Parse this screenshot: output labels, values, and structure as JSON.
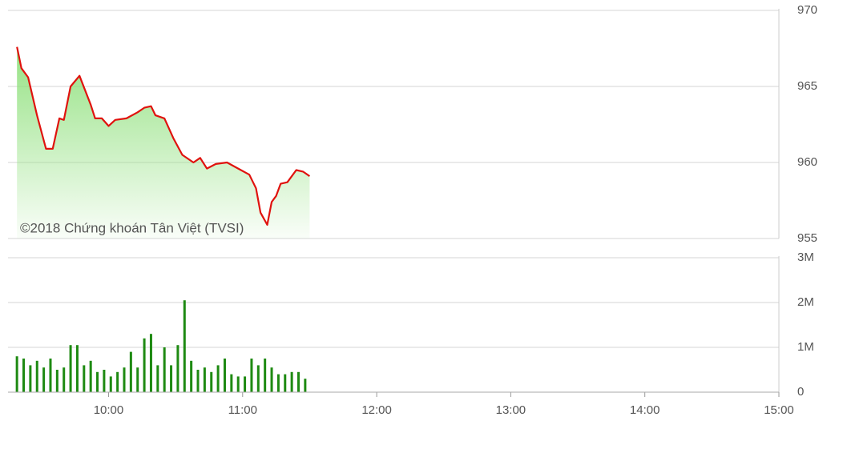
{
  "chart_data": [
    {
      "type": "line",
      "annotation": "©2018 Chứng khoán Tân Việt (TVSI)",
      "color": "#e0120e",
      "area_color": "#8fe07c",
      "x": [
        "9:19",
        "9:21",
        "9:24",
        "9:28",
        "9:32",
        "9:35",
        "9:38",
        "9:40",
        "9:43",
        "9:47",
        "9:52",
        "9:54",
        "9:57",
        "10:00",
        "10:03",
        "10:08",
        "10:13",
        "10:16",
        "10:19",
        "10:21",
        "10:25",
        "10:29",
        "10:33",
        "10:38",
        "10:41",
        "10:44",
        "10:48",
        "10:53",
        "10:58",
        "11:03",
        "11:06",
        "11:08",
        "11:11",
        "11:13",
        "11:15",
        "11:17",
        "11:20",
        "11:24",
        "11:27",
        "11:30"
      ],
      "values": [
        967.6,
        966.2,
        965.6,
        963.1,
        960.9,
        960.9,
        962.9,
        962.8,
        965.0,
        965.7,
        963.8,
        962.9,
        962.9,
        962.4,
        962.8,
        962.9,
        963.3,
        963.6,
        963.7,
        963.1,
        962.9,
        961.6,
        960.5,
        960.0,
        960.3,
        959.6,
        959.9,
        960.0,
        959.6,
        959.2,
        958.3,
        956.7,
        955.9,
        957.4,
        957.8,
        958.6,
        958.7,
        959.5,
        959.4,
        959.1
      ],
      "xlim": [
        "9:15",
        "15:00"
      ],
      "ylim": [
        955,
        970
      ],
      "yticks": [
        955,
        960,
        965,
        970
      ],
      "grid": true
    },
    {
      "type": "bar",
      "color": "#1e8a12",
      "x": [
        "9:19",
        "9:22",
        "9:25",
        "9:28",
        "9:31",
        "9:34",
        "9:37",
        "9:40",
        "9:43",
        "9:46",
        "9:49",
        "9:52",
        "9:55",
        "9:58",
        "10:01",
        "10:04",
        "10:07",
        "10:10",
        "10:13",
        "10:16",
        "10:19",
        "10:22",
        "10:25",
        "10:28",
        "10:31",
        "10:34",
        "10:37",
        "10:40",
        "10:43",
        "10:46",
        "10:49",
        "10:52",
        "10:55",
        "10:58",
        "11:01",
        "11:04",
        "11:07",
        "11:10",
        "11:13",
        "11:16",
        "11:19",
        "11:22",
        "11:25",
        "11:28"
      ],
      "values": [
        800000,
        750000,
        600000,
        700000,
        550000,
        750000,
        500000,
        550000,
        1050000,
        1050000,
        600000,
        700000,
        450000,
        500000,
        350000,
        450000,
        550000,
        900000,
        550000,
        1200000,
        1300000,
        600000,
        1000000,
        600000,
        1050000,
        2050000,
        700000,
        500000,
        550000,
        450000,
        600000,
        750000,
        400000,
        350000,
        350000,
        750000,
        600000,
        750000,
        550000,
        400000,
        400000,
        450000,
        450000,
        300000
      ],
      "xlim": [
        "9:15",
        "15:00"
      ],
      "xticks": [
        "10:00",
        "11:00",
        "12:00",
        "13:00",
        "14:00",
        "15:00"
      ],
      "ylim": [
        0,
        3000000
      ],
      "yticks": [
        {
          "value": 0,
          "label": "0"
        },
        {
          "value": 1000000,
          "label": "1M"
        },
        {
          "value": 2000000,
          "label": "2M"
        },
        {
          "value": 3000000,
          "label": "3M"
        }
      ],
      "grid": true
    }
  ]
}
